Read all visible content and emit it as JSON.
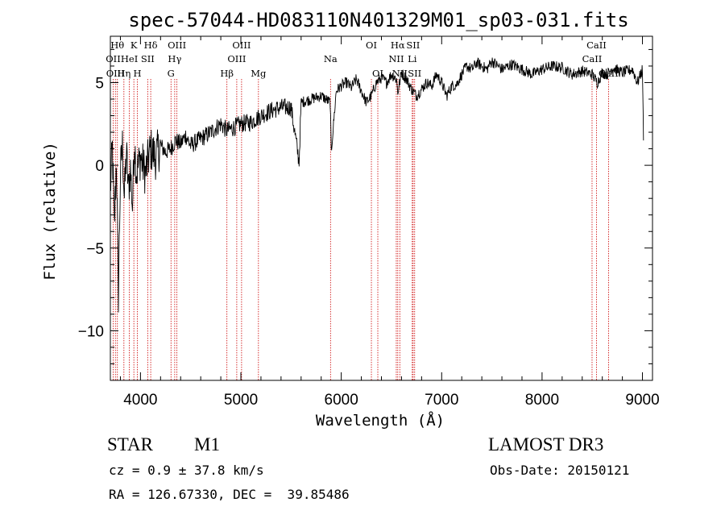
{
  "chart_data": {
    "type": "line",
    "title": "spec-57044-HD083110N401329M01_sp03-031.fits",
    "xlabel": "Wavelength (Å)",
    "ylabel": "Flux (relative)",
    "xlim": [
      3700,
      9100
    ],
    "ylim": [
      -13,
      7.8
    ],
    "xticks": [
      4000,
      5000,
      6000,
      7000,
      8000,
      9000
    ],
    "yticks": [
      -10,
      -5,
      0,
      5
    ],
    "series": [
      {
        "name": "spectrum",
        "x": [
          3700,
          3720,
          3740,
          3760,
          3780,
          3800,
          3820,
          3840,
          3860,
          3880,
          3900,
          3920,
          3940,
          3960,
          3980,
          4000,
          4050,
          4100,
          4150,
          4200,
          4250,
          4300,
          4350,
          4400,
          4450,
          4500,
          4600,
          4700,
          4800,
          4860,
          4900,
          5000,
          5100,
          5200,
          5300,
          5400,
          5500,
          5580,
          5600,
          5700,
          5800,
          5890,
          5900,
          5950,
          6000,
          6050,
          6100,
          6150,
          6200,
          6250,
          6300,
          6350,
          6400,
          6450,
          6500,
          6550,
          6563,
          6600,
          6650,
          6700,
          6750,
          6800,
          6850,
          6900,
          6950,
          7000,
          7050,
          7100,
          7150,
          7200,
          7250,
          7300,
          7350,
          7400,
          7450,
          7500,
          7600,
          7700,
          7800,
          7900,
          8000,
          8100,
          8200,
          8300,
          8400,
          8500,
          8550,
          8600,
          8650,
          8700,
          8800,
          8900,
          8950,
          9000,
          9010
        ],
        "values": [
          -1.5,
          1.0,
          -3.8,
          0.5,
          -7.8,
          -0.5,
          1.2,
          -2.0,
          0.8,
          -1.5,
          -0.2,
          -2.5,
          1.5,
          -0.5,
          0.0,
          0.5,
          -0.5,
          1.0,
          0.5,
          1.2,
          0.8,
          1.0,
          1.5,
          1.3,
          1.8,
          1.2,
          1.6,
          2.0,
          2.5,
          2.1,
          2.2,
          2.5,
          2.6,
          3.0,
          3.3,
          3.5,
          3.5,
          0.2,
          3.8,
          4.0,
          4.2,
          3.8,
          0.8,
          4.5,
          4.8,
          5.0,
          4.7,
          5.2,
          4.5,
          3.8,
          4.2,
          5.0,
          5.3,
          5.0,
          5.5,
          5.2,
          4.4,
          5.6,
          5.2,
          4.6,
          4.2,
          4.6,
          5.0,
          4.8,
          5.5,
          5.0,
          4.2,
          4.8,
          4.9,
          5.5,
          6.0,
          5.8,
          6.2,
          6.0,
          5.8,
          6.3,
          5.8,
          6.1,
          5.8,
          5.5,
          5.8,
          6.0,
          5.9,
          5.5,
          5.7,
          5.5,
          5.0,
          5.6,
          5.5,
          5.9,
          5.6,
          5.8,
          5.0,
          5.8,
          1.5
        ]
      }
    ],
    "lines": [
      {
        "x": 3728,
        "label": "OII",
        "row": 1
      },
      {
        "x": 3750,
        "label": "OIII",
        "row": 2
      },
      {
        "x": 3770,
        "label": "Hθ",
        "row": 0
      },
      {
        "x": 3835,
        "label": "Hη",
        "row": 2
      },
      {
        "x": 3889,
        "label": "HeI",
        "row": 1
      },
      {
        "x": 3934,
        "label": "K",
        "row": 0
      },
      {
        "x": 3969,
        "label": "H",
        "row": 2
      },
      {
        "x": 4072,
        "label": "SII",
        "row": 1
      },
      {
        "x": 4102,
        "label": "Hδ",
        "row": 0
      },
      {
        "x": 4304,
        "label": "G",
        "row": 2
      },
      {
        "x": 4341,
        "label": "Hγ",
        "row": 1
      },
      {
        "x": 4363,
        "label": "OIII",
        "row": 0
      },
      {
        "x": 4861,
        "label": "Hβ",
        "row": 2
      },
      {
        "x": 4959,
        "label": "OIII",
        "row": 1
      },
      {
        "x": 5007,
        "label": "OIII",
        "row": 0
      },
      {
        "x": 5175,
        "label": "Mg",
        "row": 2
      },
      {
        "x": 5893,
        "label": "Na",
        "row": 1
      },
      {
        "x": 6300,
        "label": "OI",
        "row": 0
      },
      {
        "x": 6364,
        "label": "OI",
        "row": 2
      },
      {
        "x": 6548,
        "label": "NII",
        "row": 1
      },
      {
        "x": 6563,
        "label": "Hα",
        "row": 0
      },
      {
        "x": 6583,
        "label": "NII",
        "row": 2
      },
      {
        "x": 6707,
        "label": "Li",
        "row": 1
      },
      {
        "x": 6716,
        "label": "SII",
        "row": 0
      },
      {
        "x": 6731,
        "label": "SII",
        "row": 2
      },
      {
        "x": 8498,
        "label": "CaII",
        "row": 1
      },
      {
        "x": 8542,
        "label": "CaII",
        "row": 0
      },
      {
        "x": 8662,
        "label": "CaII",
        "row": 2
      }
    ]
  },
  "info": {
    "class": "STAR",
    "subclass": "M1",
    "survey": "LAMOST DR3",
    "cz": "cz = 0.9 ± 37.8 km/s",
    "obs_date": "Obs-Date: 20150121",
    "radec": "RA = 126.67330, DEC =  39.85486"
  }
}
